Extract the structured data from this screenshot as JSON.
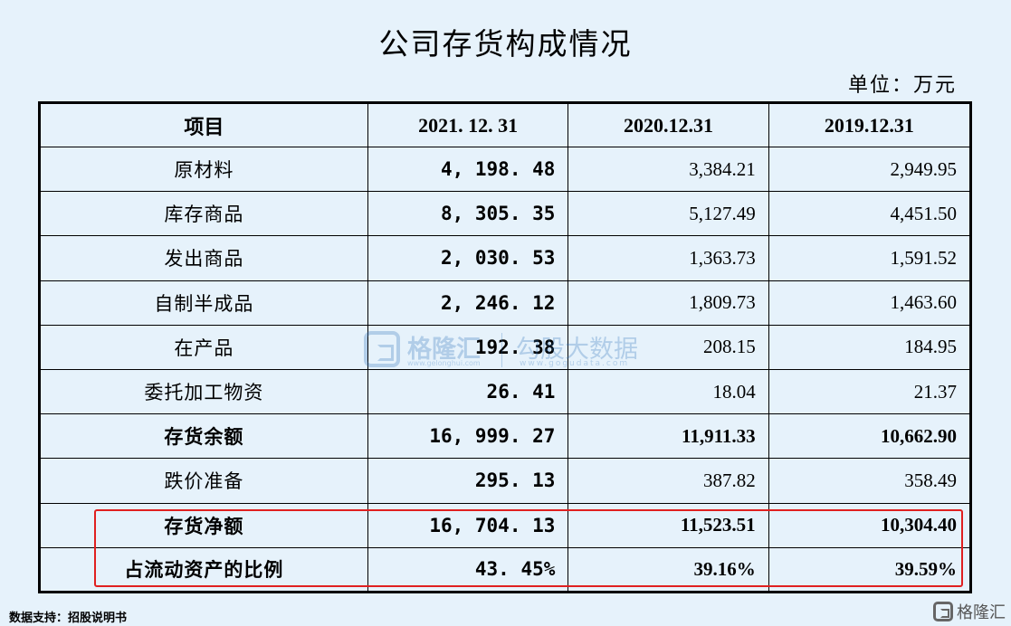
{
  "title": "公司存货构成情况",
  "unit": "单位：万元",
  "table": {
    "headers": [
      "项目",
      "2021. 12. 31",
      "2020.12.31",
      "2019.12.31"
    ],
    "rows": [
      {
        "item": "原材料",
        "v2021": "4, 198. 48",
        "v2020": "3,384.21",
        "v2019": "2,949.95"
      },
      {
        "item": "库存商品",
        "v2021": "8, 305. 35",
        "v2020": "5,127.49",
        "v2019": "4,451.50"
      },
      {
        "item": "发出商品",
        "v2021": "2, 030. 53",
        "v2020": "1,363.73",
        "v2019": "1,591.52"
      },
      {
        "item": "自制半成品",
        "v2021": "2, 246. 12",
        "v2020": "1,809.73",
        "v2019": "1,463.60"
      },
      {
        "item": "在产品",
        "v2021": "192. 38",
        "v2020": "208.15",
        "v2019": "184.95"
      },
      {
        "item": "委托加工物资",
        "v2021": "26. 41",
        "v2020": "18.04",
        "v2019": "21.37"
      },
      {
        "item": "存货余额",
        "v2021": "16, 999. 27",
        "v2020": "11,911.33",
        "v2019": "10,662.90"
      },
      {
        "item": "跌价准备",
        "v2021": "295. 13",
        "v2020": "387.82",
        "v2019": "358.49"
      },
      {
        "item": "存货净额",
        "v2021": "16, 704. 13",
        "v2020": "11,523.51",
        "v2019": "10,304.40"
      },
      {
        "item": "占流动资产的比例",
        "v2021": "43. 45%",
        "v2020": "39.16%",
        "v2019": "39.59%"
      }
    ]
  },
  "highlight_color": "#e02020",
  "background_color": "#e6f2fb",
  "watermark": {
    "icon": "gelonghui-logo-icon",
    "name": "格隆汇",
    "url1": "www.gelonghui.com",
    "name2": "勾股大数据",
    "url2": "www.gogudata.com"
  },
  "source": "数据支持：招股说明书",
  "brand": {
    "icon": "gelonghui-logo-icon",
    "name": "格隆汇"
  }
}
